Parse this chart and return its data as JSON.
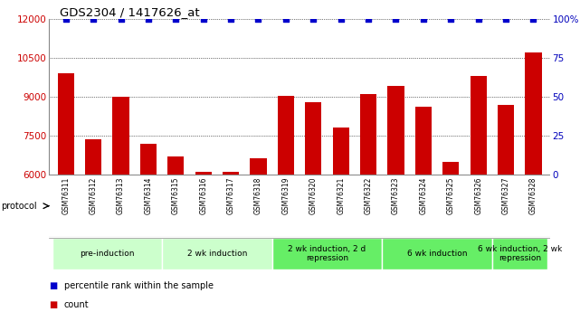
{
  "title": "GDS2304 / 1417626_at",
  "samples": [
    "GSM76311",
    "GSM76312",
    "GSM76313",
    "GSM76314",
    "GSM76315",
    "GSM76316",
    "GSM76317",
    "GSM76318",
    "GSM76319",
    "GSM76320",
    "GSM76321",
    "GSM76322",
    "GSM76323",
    "GSM76324",
    "GSM76325",
    "GSM76326",
    "GSM76327",
    "GSM76328"
  ],
  "counts": [
    9900,
    7350,
    9000,
    7200,
    6700,
    6100,
    6100,
    6650,
    9050,
    8800,
    7800,
    9100,
    9400,
    8600,
    6500,
    9800,
    8700,
    10700
  ],
  "percentile_ranks": [
    100,
    100,
    100,
    100,
    100,
    100,
    100,
    100,
    100,
    100,
    100,
    100,
    100,
    100,
    100,
    100,
    100,
    100
  ],
  "bar_color": "#cc0000",
  "dot_color": "#0000cc",
  "ylim_left": [
    6000,
    12000
  ],
  "ylim_right": [
    0,
    100
  ],
  "yticks_left": [
    6000,
    7500,
    9000,
    10500,
    12000
  ],
  "yticks_right": [
    0,
    25,
    50,
    75,
    100
  ],
  "ylabel_left_color": "#cc0000",
  "ylabel_right_color": "#0000bb",
  "groups": [
    {
      "label": "pre-induction",
      "start": 0,
      "end": 3,
      "color": "#ccffcc"
    },
    {
      "label": "2 wk induction",
      "start": 4,
      "end": 7,
      "color": "#ccffcc"
    },
    {
      "label": "2 wk induction, 2 d\nrepression",
      "start": 8,
      "end": 11,
      "color": "#66ee66"
    },
    {
      "label": "6 wk induction",
      "start": 12,
      "end": 15,
      "color": "#66ee66"
    },
    {
      "label": "6 wk induction, 2 wk\nrepression",
      "start": 16,
      "end": 17,
      "color": "#66ee66"
    }
  ],
  "protocol_label": "protocol",
  "legend_count_label": "count",
  "legend_percentile_label": "percentile rank within the sample",
  "background_color": "#ffffff",
  "plot_bg_color": "#ffffff",
  "tick_bg_color": "#c8c8c8"
}
